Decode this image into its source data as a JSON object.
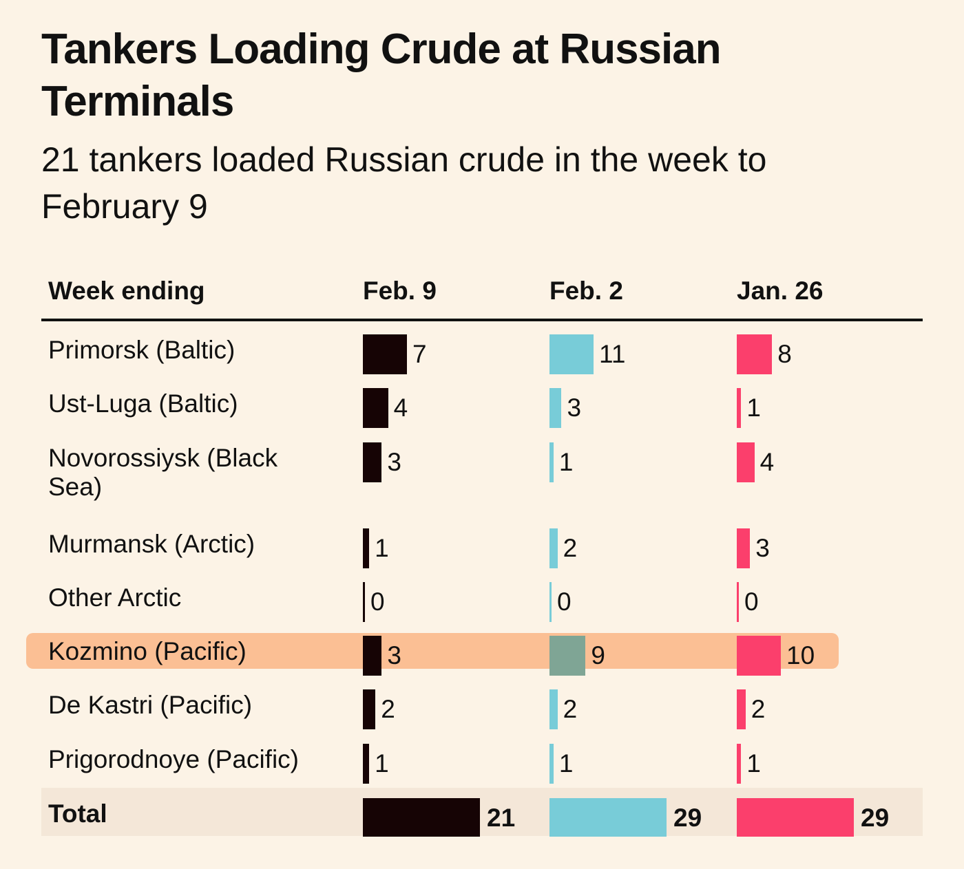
{
  "chart_data": {
    "type": "bar",
    "title": "Tankers Loading Crude at Russian Terminals",
    "subtitle": "21 tankers loaded Russian crude in the week to February 9",
    "row_header": "Week ending",
    "columns": [
      "Feb. 9",
      "Feb. 2",
      "Jan. 26"
    ],
    "categories": [
      "Primorsk (Baltic)",
      "Ust-Luga (Baltic)",
      "Novorossiysk (Black Sea)",
      "Murmansk (Arctic)",
      "Other Arctic",
      "Kozmino (Pacific)",
      "De Kastri (Pacific)",
      "Prigorodnoye (Pacific)"
    ],
    "series": [
      {
        "name": "Feb. 9",
        "color": "#160405",
        "values": [
          7,
          4,
          3,
          1,
          0,
          3,
          2,
          1
        ],
        "total": 21
      },
      {
        "name": "Feb. 2",
        "color": "#78ccd8",
        "values": [
          11,
          3,
          1,
          2,
          0,
          9,
          2,
          1
        ],
        "total": 29
      },
      {
        "name": "Jan. 26",
        "color": "#fb3f6c",
        "values": [
          8,
          1,
          4,
          3,
          0,
          10,
          2,
          1
        ],
        "total": 29
      }
    ],
    "total_label": "Total",
    "highlighted_row": "Kozmino (Pacific)"
  }
}
